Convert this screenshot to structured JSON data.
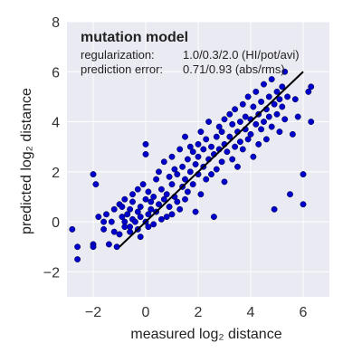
{
  "chart_data": {
    "type": "scatter",
    "title": "",
    "xlabel": "measured log₂ distance",
    "ylabel": "predicted log₂ distance",
    "xlim": [
      -3,
      7
    ],
    "ylim": [
      -3,
      8
    ],
    "xticks": [
      -2,
      0,
      2,
      4,
      6
    ],
    "yticks": [
      -2,
      0,
      2,
      4,
      6,
      8
    ],
    "xtick_labels": [
      "−2",
      "0",
      "2",
      "4",
      "6"
    ],
    "ytick_labels": [
      "−2",
      "0",
      "2",
      "4",
      "6",
      "8"
    ],
    "grid": true,
    "background_color": "#eaeaf2",
    "point_color": "#0000cc",
    "line_color": "#000000",
    "annotation": {
      "title": "mutation model",
      "rows": [
        {
          "label": "regularization:",
          "value": "1.0/0.3/2.0 (HI/pot/avi)"
        },
        {
          "label": "prediction error:",
          "value": "0.71/0.93 (abs/rms)"
        }
      ]
    },
    "fit_line": {
      "x": [
        -1,
        6
      ],
      "y": [
        -1,
        6
      ]
    },
    "points": [
      [
        -2.8,
        -0.3
      ],
      [
        -2.6,
        -1.0
      ],
      [
        -2.6,
        -1.5
      ],
      [
        -2.0,
        -0.9
      ],
      [
        -2.0,
        -1.0
      ],
      [
        -2.0,
        1.9
      ],
      [
        -1.9,
        1.5
      ],
      [
        -1.8,
        0.2
      ],
      [
        -1.6,
        0.0
      ],
      [
        -1.6,
        -0.3
      ],
      [
        -1.5,
        0.3
      ],
      [
        -1.4,
        -0.9
      ],
      [
        -1.3,
        0.0
      ],
      [
        -1.2,
        0.5
      ],
      [
        -1.2,
        -0.4
      ],
      [
        -1.1,
        -1.0
      ],
      [
        -1.0,
        0.7
      ],
      [
        -1.0,
        -0.5
      ],
      [
        -0.9,
        0.2
      ],
      [
        -0.9,
        0.6
      ],
      [
        -0.8,
        0.0
      ],
      [
        -0.8,
        -0.2
      ],
      [
        -0.8,
        0.9
      ],
      [
        -0.7,
        0.3
      ],
      [
        -0.6,
        -0.4
      ],
      [
        -0.6,
        -0.2
      ],
      [
        -0.6,
        0.5
      ],
      [
        -0.5,
        0.1
      ],
      [
        -0.5,
        1.1
      ],
      [
        -0.5,
        0.8
      ],
      [
        -0.4,
        0.0
      ],
      [
        -0.3,
        0.4
      ],
      [
        -0.3,
        -0.3
      ],
      [
        -0.3,
        1.3
      ],
      [
        -0.2,
        0.2
      ],
      [
        -0.2,
        0.6
      ],
      [
        -0.2,
        -0.6
      ],
      [
        -0.1,
        1.5
      ],
      [
        0.0,
        0.9
      ],
      [
        0.0,
        3.1
      ],
      [
        0.0,
        0.0
      ],
      [
        0.0,
        2.7
      ],
      [
        0.1,
        0.3
      ],
      [
        0.1,
        1.2
      ],
      [
        0.1,
        -0.2
      ],
      [
        0.2,
        0.5
      ],
      [
        0.2,
        0.8
      ],
      [
        0.3,
        1.0
      ],
      [
        0.3,
        -0.1
      ],
      [
        0.4,
        0.4
      ],
      [
        0.4,
        1.7
      ],
      [
        0.5,
        2.0
      ],
      [
        0.5,
        0.7
      ],
      [
        0.6,
        1.3
      ],
      [
        0.6,
        0.1
      ],
      [
        0.7,
        2.4
      ],
      [
        0.7,
        0.9
      ],
      [
        0.8,
        1.1
      ],
      [
        0.8,
        0.2
      ],
      [
        0.9,
        1.8
      ],
      [
        0.9,
        0.6
      ],
      [
        1.0,
        1.5
      ],
      [
        1.0,
        2.6
      ],
      [
        1.0,
        0.3
      ],
      [
        1.1,
        1.0
      ],
      [
        1.1,
        2.1
      ],
      [
        1.2,
        0.8
      ],
      [
        1.2,
        1.9
      ],
      [
        1.3,
        2.9
      ],
      [
        1.3,
        0.5
      ],
      [
        1.4,
        1.4
      ],
      [
        1.4,
        2.2
      ],
      [
        1.5,
        1.7
      ],
      [
        1.5,
        0.9
      ],
      [
        1.5,
        3.4
      ],
      [
        1.6,
        2.5
      ],
      [
        1.6,
        1.2
      ],
      [
        1.7,
        2.0
      ],
      [
        1.7,
        3.0
      ],
      [
        1.8,
        1.5
      ],
      [
        1.8,
        2.8
      ],
      [
        1.9,
        2.3
      ],
      [
        1.9,
        0.4
      ],
      [
        2.0,
        1.9
      ],
      [
        2.0,
        3.1
      ],
      [
        2.0,
        2.6
      ],
      [
        2.1,
        1.1
      ],
      [
        2.1,
        3.6
      ],
      [
        2.2,
        2.2
      ],
      [
        2.2,
        2.9
      ],
      [
        2.3,
        1.7
      ],
      [
        2.3,
        3.3
      ],
      [
        2.4,
        2.5
      ],
      [
        2.4,
        4.0
      ],
      [
        2.5,
        1.9
      ],
      [
        2.5,
        3.0
      ],
      [
        2.6,
        2.7
      ],
      [
        2.6,
        0.2
      ],
      [
        2.7,
        3.4
      ],
      [
        2.7,
        2.1
      ],
      [
        2.8,
        3.8
      ],
      [
        2.8,
        2.9
      ],
      [
        2.9,
        2.4
      ],
      [
        2.9,
        3.6
      ],
      [
        3.0,
        3.1
      ],
      [
        3.0,
        4.1
      ],
      [
        3.0,
        1.6
      ],
      [
        3.1,
        2.8
      ],
      [
        3.2,
        3.4
      ],
      [
        3.2,
        4.3
      ],
      [
        3.3,
        2.5
      ],
      [
        3.3,
        3.9
      ],
      [
        3.4,
        3.0
      ],
      [
        3.4,
        4.5
      ],
      [
        3.5,
        3.6
      ],
      [
        3.5,
        2.2
      ],
      [
        3.6,
        4.0
      ],
      [
        3.6,
        3.2
      ],
      [
        3.7,
        4.7
      ],
      [
        3.7,
        2.9
      ],
      [
        3.8,
        3.7
      ],
      [
        3.8,
        4.2
      ],
      [
        3.9,
        3.3
      ],
      [
        3.9,
        5.0
      ],
      [
        4.0,
        4.1
      ],
      [
        4.0,
        3.5
      ],
      [
        4.1,
        2.6
      ],
      [
        4.1,
        4.6
      ],
      [
        4.2,
        3.9
      ],
      [
        4.2,
        5.2
      ],
      [
        4.3,
        4.3
      ],
      [
        4.3,
        3.1
      ],
      [
        4.4,
        4.8
      ],
      [
        4.4,
        3.7
      ],
      [
        4.5,
        5.5
      ],
      [
        4.5,
        4.0
      ],
      [
        4.6,
        3.3
      ],
      [
        4.6,
        4.5
      ],
      [
        4.7,
        5.0
      ],
      [
        4.7,
        4.2
      ],
      [
        4.8,
        3.8
      ],
      [
        4.8,
        5.7
      ],
      [
        4.9,
        4.7
      ],
      [
        4.9,
        0.5
      ],
      [
        5.0,
        5.2
      ],
      [
        5.0,
        4.3
      ],
      [
        5.1,
        3.6
      ],
      [
        5.1,
        4.9
      ],
      [
        5.2,
        5.4
      ],
      [
        5.2,
        4.6
      ],
      [
        5.3,
        6.0
      ],
      [
        5.3,
        4.1
      ],
      [
        5.4,
        5.0
      ],
      [
        5.5,
        1.1
      ],
      [
        5.6,
        3.5
      ],
      [
        5.7,
        4.9
      ],
      [
        5.8,
        4.2
      ],
      [
        6.0,
        1.9
      ],
      [
        6.0,
        0.7
      ],
      [
        6.3,
        5.4
      ],
      [
        6.3,
        4.0
      ],
      [
        6.2,
        5.2
      ]
    ]
  }
}
